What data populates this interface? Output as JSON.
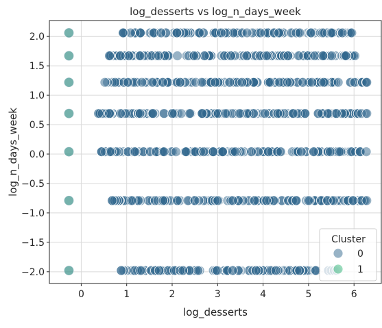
{
  "chart_data": {
    "type": "scatter",
    "title": "log_desserts vs log_n_days_week",
    "xlabel": "log_desserts",
    "ylabel": "log_n_days_week",
    "xlim": [
      -0.7,
      6.6
    ],
    "ylim": [
      -2.2,
      2.27
    ],
    "x_ticks": [
      0,
      1,
      2,
      3,
      4,
      5,
      6
    ],
    "y_ticks": [
      -2.0,
      -1.5,
      -1.0,
      -0.5,
      0.0,
      0.5,
      1.0,
      1.5,
      2.0
    ],
    "x_tick_labels": [
      "0",
      "1",
      "2",
      "3",
      "4",
      "5",
      "6"
    ],
    "y_tick_labels": [
      "−2.0",
      "−1.5",
      "−1.0",
      "−0.5",
      "0.0",
      "0.5",
      "1.0",
      "1.5",
      "2.0"
    ],
    "grid": true,
    "legend": {
      "title": "Cluster",
      "placement": "lower-right",
      "entries": [
        {
          "label": "0",
          "color": "#31688e"
        },
        {
          "label": "1",
          "color": "#35b779"
        }
      ]
    },
    "series": [
      {
        "name": "0",
        "color": "#31688e",
        "rows": [
          {
            "y": 2.06,
            "x_min": 0.92,
            "x_max": 5.95
          },
          {
            "y": 1.67,
            "x_min": 0.62,
            "x_max": 6.02
          },
          {
            "y": 1.22,
            "x_min": 0.52,
            "x_max": 6.28
          },
          {
            "y": 0.69,
            "x_min": 0.38,
            "x_max": 6.28
          },
          {
            "y": 0.04,
            "x_min": 0.45,
            "x_max": 6.27
          },
          {
            "y": -0.79,
            "x_min": 0.68,
            "x_max": 6.28
          },
          {
            "y": -1.98,
            "x_min": 0.88,
            "x_max": 5.62
          }
        ]
      },
      {
        "name": "1",
        "color": "#35b779",
        "points": [
          {
            "x": -0.27,
            "y": 2.06
          },
          {
            "x": -0.27,
            "y": 1.67
          },
          {
            "x": -0.27,
            "y": 1.22
          },
          {
            "x": -0.27,
            "y": 0.69
          },
          {
            "x": -0.27,
            "y": 0.04
          },
          {
            "x": -0.27,
            "y": -0.79
          },
          {
            "x": -0.27,
            "y": -1.98
          }
        ]
      }
    ]
  }
}
